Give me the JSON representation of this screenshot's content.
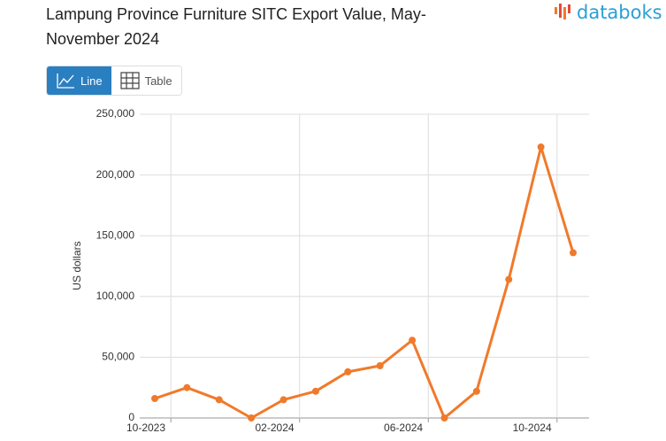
{
  "header": {
    "title": "Lampung Province Furniture SITC Export Value, May-November 2024",
    "logo": "databoks"
  },
  "controls": {
    "line": "Line",
    "table": "Table"
  },
  "chart_data": {
    "type": "line",
    "y_label": "US dollars",
    "categories": [
      "10-2023",
      null,
      null,
      null,
      "02-2024",
      null,
      null,
      null,
      "06-2024",
      null,
      null,
      null,
      "10-2024",
      null
    ],
    "series": [
      {
        "name": "Export value",
        "color": "#f07a2b",
        "values": [
          16000,
          25000,
          15000,
          0,
          15000,
          22000,
          38000,
          43000,
          64000,
          0,
          22000,
          114000,
          223000,
          136000
        ]
      }
    ],
    "ylim": [
      0,
      250000
    ],
    "yticks": [
      0,
      {
        "value": 50000,
        "label": "50,000"
      },
      {
        "value": 100000,
        "label": "100,000"
      },
      {
        "value": 150000,
        "label": "150,000"
      },
      {
        "value": 200000,
        "label": "200,000"
      },
      {
        "value": 250000,
        "label": "250,000"
      }
    ],
    "grid": true
  }
}
